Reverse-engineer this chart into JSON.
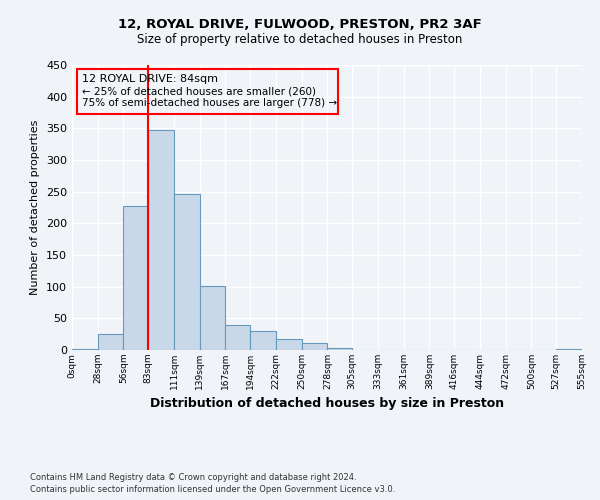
{
  "title": "12, ROYAL DRIVE, FULWOOD, PRESTON, PR2 3AF",
  "subtitle": "Size of property relative to detached houses in Preston",
  "xlabel": "Distribution of detached houses by size in Preston",
  "ylabel": "Number of detached properties",
  "bar_color": "#c8d8e8",
  "bar_edge_color": "#6699bb",
  "background_color": "#f0f4f8",
  "grid_color": "#ffffff",
  "bin_edges": [
    0,
    28,
    56,
    83,
    111,
    139,
    167,
    194,
    222,
    250,
    278,
    305,
    333,
    361,
    389,
    416,
    444,
    472,
    500,
    527,
    555
  ],
  "bin_labels": [
    "0sqm",
    "28sqm",
    "56sqm",
    "83sqm",
    "111sqm",
    "139sqm",
    "167sqm",
    "194sqm",
    "222sqm",
    "250sqm",
    "278sqm",
    "305sqm",
    "333sqm",
    "361sqm",
    "389sqm",
    "416sqm",
    "444sqm",
    "472sqm",
    "500sqm",
    "527sqm",
    "555sqm"
  ],
  "bar_heights": [
    2,
    25,
    228,
    348,
    246,
    101,
    40,
    30,
    17,
    11,
    3,
    0,
    0,
    0,
    0,
    0,
    0,
    0,
    0,
    2
  ],
  "ylim": [
    0,
    450
  ],
  "yticks": [
    0,
    50,
    100,
    150,
    200,
    250,
    300,
    350,
    400,
    450
  ],
  "red_line_x": 83,
  "annotation_line1": "12 ROYAL DRIVE: 84sqm",
  "annotation_line2": "← 25% of detached houses are smaller (260)",
  "annotation_line3": "75% of semi-detached houses are larger (778) →",
  "footnote1": "Contains HM Land Registry data © Crown copyright and database right 2024.",
  "footnote2": "Contains public sector information licensed under the Open Government Licence v3.0."
}
